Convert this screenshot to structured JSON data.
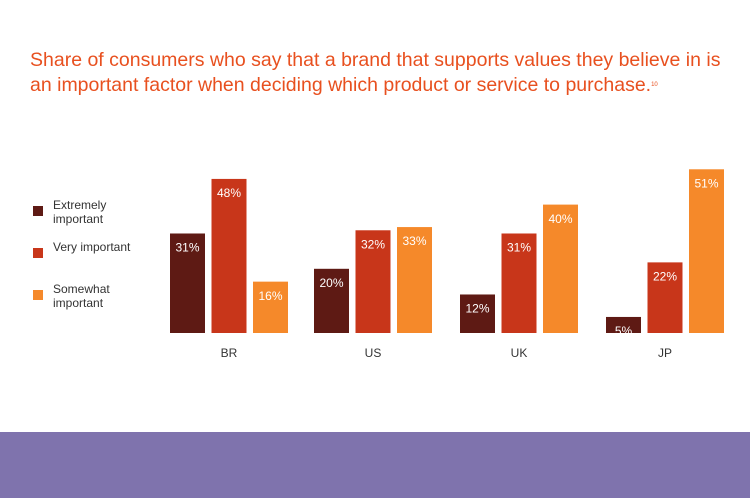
{
  "chart_data": {
    "type": "bar",
    "title": "Share of consumers who say that a brand that supports values they believe in is an important factor when deciding which product or service to purchase.",
    "footnote": "10",
    "categories": [
      "BR",
      "US",
      "UK",
      "JP"
    ],
    "series": [
      {
        "name": "Extremely important",
        "color": "#5e1a14",
        "values": [
          31,
          20,
          12,
          5
        ],
        "value_labels": [
          "31%",
          "20%",
          "12%",
          "5%"
        ]
      },
      {
        "name": "Very important",
        "color": "#c8361a",
        "values": [
          48,
          32,
          31,
          22
        ],
        "value_labels": [
          "48%",
          "32%",
          "31%",
          "22%"
        ]
      },
      {
        "name": "Somewhat important",
        "color": "#f5892a",
        "values": [
          16,
          33,
          40,
          51
        ],
        "value_labels": [
          "16%",
          "33%",
          "40%",
          "51%"
        ]
      }
    ],
    "legend": "left"
  }
}
